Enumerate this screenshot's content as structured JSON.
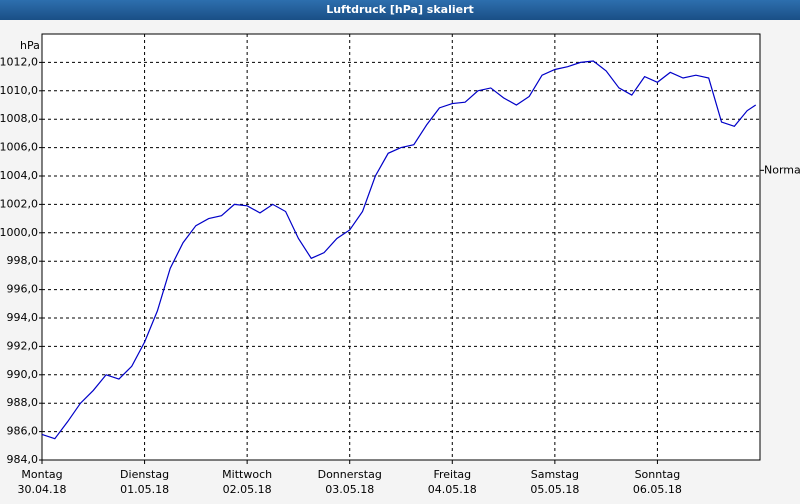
{
  "chart_data": {
    "type": "line",
    "title": "Luftdruck [hPa] skaliert",
    "y_unit": "hPa",
    "x": [
      0,
      3,
      6,
      9,
      12,
      15,
      18,
      21,
      24,
      27,
      30,
      33,
      36,
      39,
      42,
      45,
      48,
      51,
      54,
      57,
      60,
      63,
      66,
      69,
      72,
      75,
      78,
      81,
      84,
      87,
      90,
      93,
      96,
      99,
      102,
      105,
      108,
      111,
      114,
      117,
      120,
      123,
      126,
      129,
      132,
      135,
      138,
      141,
      144,
      147,
      150,
      153,
      156,
      159,
      162,
      165,
      167
    ],
    "series": [
      {
        "color": "#0000c8",
        "values": [
          985.8,
          985.5,
          986.7,
          988.0,
          988.9,
          990.0,
          989.7,
          990.6,
          992.3,
          994.5,
          997.5,
          999.3,
          1000.5,
          1001.0,
          1001.2,
          1002.0,
          1001.9,
          1001.4,
          1002.0,
          1001.5,
          999.6,
          998.2,
          998.6,
          999.6,
          1000.2,
          1001.5,
          1004.0,
          1005.6,
          1006.0,
          1006.2,
          1007.6,
          1008.8,
          1009.1,
          1009.2,
          1010.0,
          1010.2,
          1009.5,
          1009.0,
          1009.6,
          1011.1,
          1011.5,
          1011.7,
          1012.0,
          1012.1,
          1011.4,
          1010.2,
          1009.7,
          1011.0,
          1010.6,
          1011.3,
          1010.9,
          1011.1,
          1010.9,
          1007.8,
          1007.5,
          1008.6,
          1009.0
        ]
      }
    ],
    "xlim": [
      0,
      168
    ],
    "xticks": [
      {
        "value": 0,
        "label": "Montag",
        "date": "30.04.18"
      },
      {
        "value": 24,
        "label": "Dienstag",
        "date": "01.05.18"
      },
      {
        "value": 48,
        "label": "Mittwoch",
        "date": "02.05.18"
      },
      {
        "value": 72,
        "label": "Donnerstag",
        "date": "03.05.18"
      },
      {
        "value": 96,
        "label": "Freitag",
        "date": "04.05.18"
      },
      {
        "value": 120,
        "label": "Samstag",
        "date": "05.05.18"
      },
      {
        "value": 144,
        "label": "Sonntag",
        "date": "06.05.18"
      }
    ],
    "ylim": [
      984,
      1014
    ],
    "yticks": [
      {
        "value": 984,
        "label": "984,0"
      },
      {
        "value": 986,
        "label": "986,0"
      },
      {
        "value": 988,
        "label": "988,0"
      },
      {
        "value": 990,
        "label": "990,0"
      },
      {
        "value": 992,
        "label": "992,0"
      },
      {
        "value": 994,
        "label": "994,0"
      },
      {
        "value": 996,
        "label": "996,0"
      },
      {
        "value": 998,
        "label": "998,0"
      },
      {
        "value": 1000,
        "label": "1000,0"
      },
      {
        "value": 1002,
        "label": "1002,0"
      },
      {
        "value": 1004,
        "label": "1004,0"
      },
      {
        "value": 1006,
        "label": "1006,0"
      },
      {
        "value": 1008,
        "label": "1008,0"
      },
      {
        "value": 1010,
        "label": "1010,0"
      },
      {
        "value": 1012,
        "label": "1012,0"
      }
    ],
    "normal": {
      "label": "Normal",
      "value": 1004.4
    },
    "grid": true
  }
}
